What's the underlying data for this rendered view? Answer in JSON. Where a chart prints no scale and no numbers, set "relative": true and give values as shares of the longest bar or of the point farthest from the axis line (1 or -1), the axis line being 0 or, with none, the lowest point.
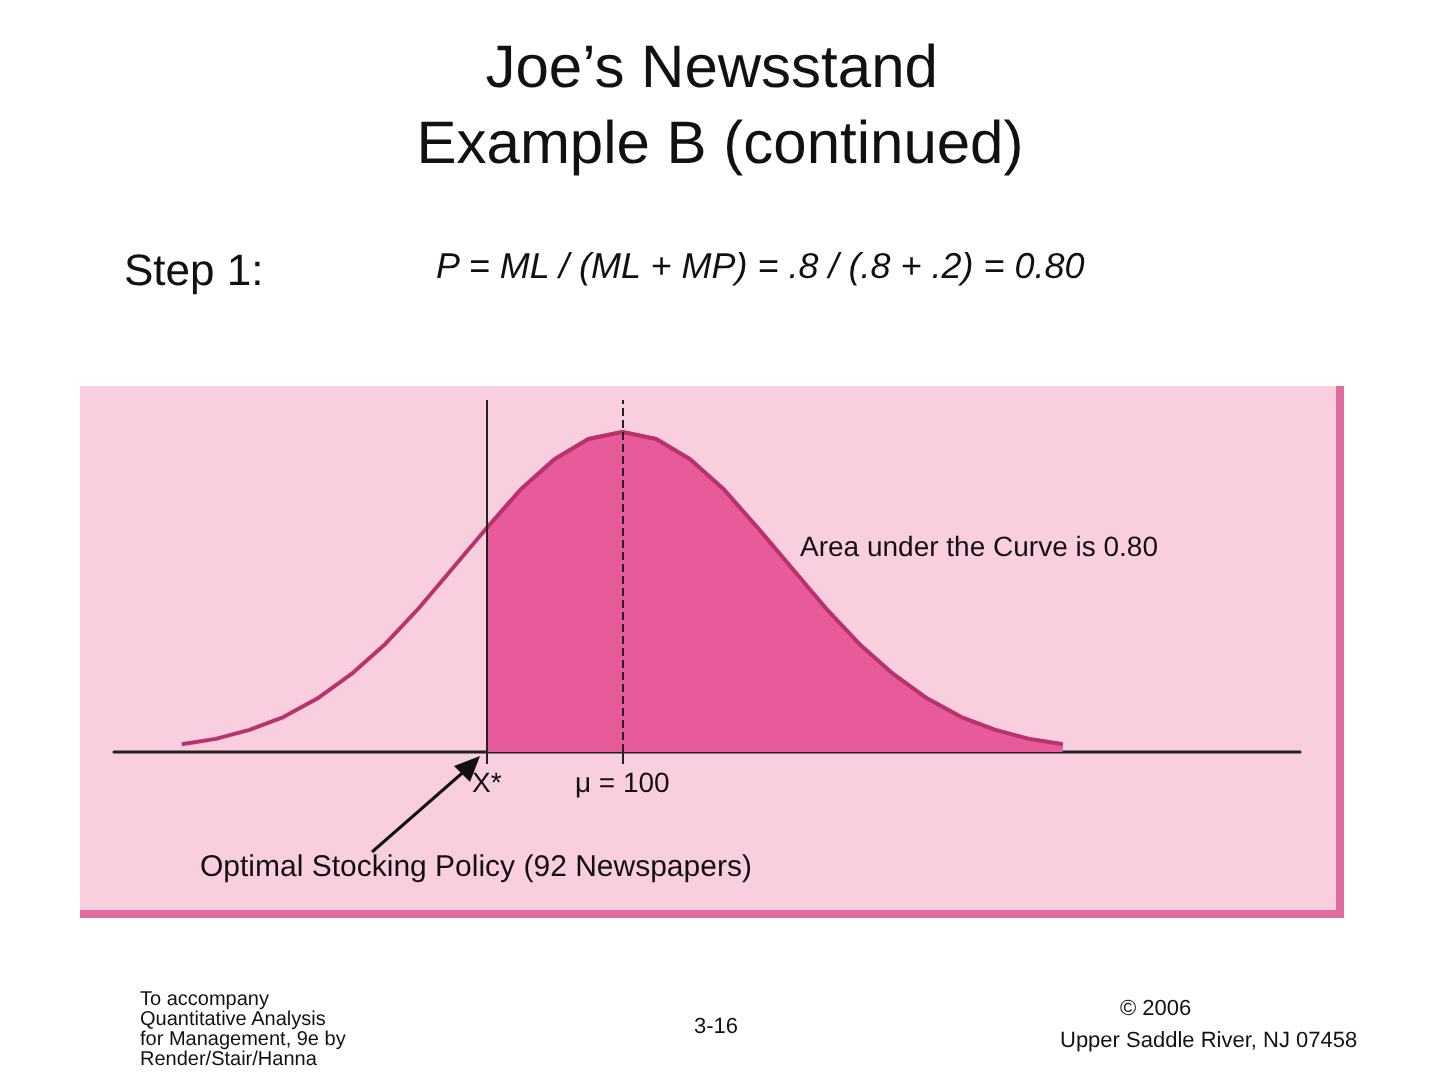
{
  "chart_data": {
    "type": "area",
    "title": "Joe’s Newsstand Example B (continued)",
    "relative": true,
    "categories": [
      null,
      null,
      null,
      null,
      null,
      null,
      null,
      null,
      null,
      null,
      null,
      "X*",
      null,
      null,
      null,
      "μ = 100",
      null,
      null,
      null,
      null,
      null,
      null,
      null,
      null,
      null,
      null,
      null,
      null,
      null,
      null,
      null,
      null,
      null,
      null,
      null,
      null
    ],
    "grid": false,
    "marker": "none",
    "series": [
      {
        "type": "line",
        "color": "#b8336a",
        "values": [
          null,
          null,
          0.024,
          0.041,
          0.069,
          0.109,
          0.167,
          0.243,
          0.337,
          0.45,
          0.575,
          0.7,
          0.82,
          0.915,
          0.978,
          1,
          0.978,
          0.915,
          0.82,
          0.7,
          0.575,
          0.45,
          0.337,
          0.243,
          0.167,
          0.109,
          0.069,
          0.041,
          0.024,
          null,
          null,
          null,
          null,
          null,
          null,
          null
        ]
      },
      {
        "color": "#e85b9a",
        "values": [
          null,
          null,
          null,
          null,
          null,
          null,
          null,
          null,
          null,
          null,
          null,
          0.7,
          0.82,
          0.915,
          0.978,
          1,
          0.978,
          0.915,
          0.82,
          0.7,
          0.575,
          0.45,
          0.337,
          0.243,
          0.167,
          0.109,
          0.069,
          0.041,
          0.024,
          null,
          null,
          null,
          null,
          null,
          null,
          null
        ]
      }
    ],
    "ref_lines": [
      {
        "axis": "x",
        "value": "X*",
        "label": null,
        "line_style": "solid",
        "color": "#222222"
      },
      {
        "axis": "x",
        "value": "μ = 100",
        "label": null,
        "line_style": "dashed",
        "color": "#222222"
      }
    ],
    "annotations": [
      "Step 1:",
      "P = ML / (ML + MP) = .8 / (.8 + .2) = 0.80",
      "Area under the Curve is 0.80",
      "Optimal Stocking Policy (92 Newspapers)",
      "To accompany Quantitative Analysis for Management, 9e by Render/Stair/Hanna",
      "3-16",
      "© 2006",
      "Upper Saddle River, NJ 07458"
    ]
  }
}
